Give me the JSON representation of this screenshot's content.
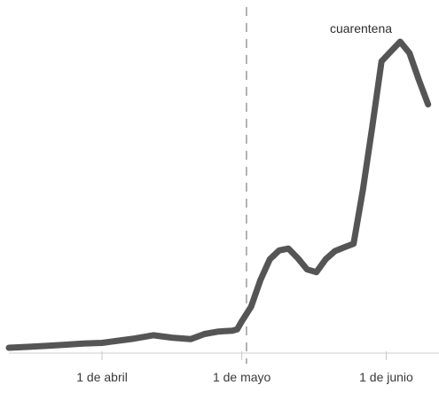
{
  "chart_data": {
    "type": "line",
    "title": "",
    "xlabel": "",
    "ylabel": "",
    "x_ticks": [
      "1 de abril",
      "1 de mayo",
      "1 de junio"
    ],
    "annotation": {
      "label": "cuarentena",
      "x": "2020-05-02"
    },
    "grid": false,
    "y_axis_visible": false,
    "ylim": [
      0,
      100
    ],
    "xlim": [
      "2020-03-12",
      "2020-06-11"
    ],
    "line_color": "#555555",
    "reference_line_color": "#9a9a9a",
    "series": [
      {
        "x": [
          "2020-03-12",
          "2020-03-16",
          "2020-03-20",
          "2020-03-24",
          "2020-03-28",
          "2020-04-01",
          "2020-04-04",
          "2020-04-08",
          "2020-04-12",
          "2020-04-16",
          "2020-04-20",
          "2020-04-23",
          "2020-04-26",
          "2020-04-29",
          "2020-04-30",
          "2020-05-01",
          "2020-05-03",
          "2020-05-05",
          "2020-05-07",
          "2020-05-09",
          "2020-05-11",
          "2020-05-13",
          "2020-05-15",
          "2020-05-17",
          "2020-05-19",
          "2020-05-21",
          "2020-05-23",
          "2020-05-25",
          "2020-05-27",
          "2020-05-29",
          "2020-05-31",
          "2020-06-02",
          "2020-06-04",
          "2020-06-06",
          "2020-06-08",
          "2020-06-10"
        ],
        "y": [
          0.0,
          0.3,
          0.6,
          1.0,
          1.4,
          1.6,
          2.2,
          3.0,
          4.1,
          3.3,
          2.8,
          4.5,
          5.3,
          5.6,
          6.0,
          8.6,
          13.4,
          22.1,
          28.9,
          31.8,
          32.4,
          29.3,
          25.6,
          24.7,
          28.9,
          31.6,
          32.8,
          34.0,
          51.6,
          72.1,
          93.6,
          96.8,
          100.0,
          96.3,
          87.6,
          79.5
        ]
      }
    ]
  }
}
